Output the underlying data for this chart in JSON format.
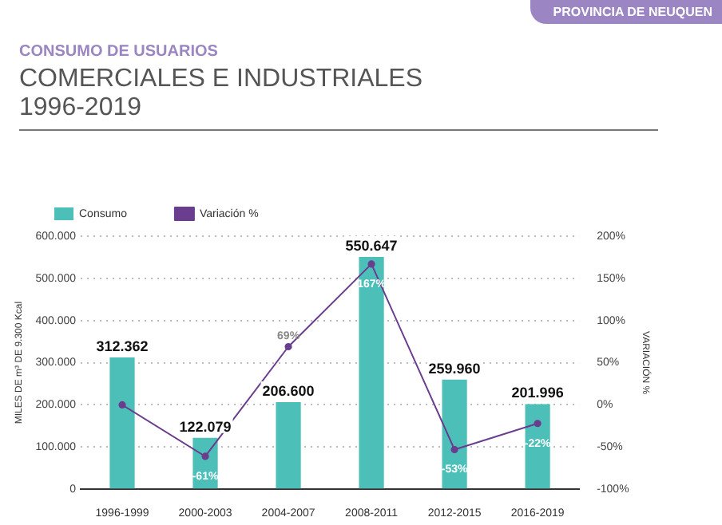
{
  "chart_data": {
    "type": "bar",
    "subtitle": "CONSUMO DE USUARIOS",
    "title": "COMERCIALES E INDUSTRIALES\n1996-2019",
    "annotations": [
      "PROVINCIA DE NEUQUEN"
    ],
    "categories": [
      "1996-1999",
      "2000-2003",
      "2004-2007",
      "2008-2011",
      "2012-2015",
      "2016-2019"
    ],
    "series": [
      {
        "name": "Consumo",
        "color": "#4bbfb8",
        "values": [
          312362,
          122079,
          206600,
          550647,
          259960,
          201996
        ],
        "value_labels": [
          "312.362",
          "122.079",
          "206.600",
          "550.647",
          "259.960",
          "201.996"
        ]
      },
      {
        "name": "Variación %",
        "type": "line",
        "axis": "y2",
        "color": "#6b3d8f",
        "values": [
          0,
          -61,
          69,
          167,
          -53,
          -22
        ],
        "value_labels": [
          null,
          "-61%",
          "69%",
          "167%",
          "-53%",
          "-22%"
        ]
      }
    ],
    "ylabel": "MILES DE m³ DE 9.300 Kcal",
    "y2label": "VARIACIÓN %",
    "ylim": [
      0,
      600000
    ],
    "yticks": [
      {
        "value": 0,
        "label": "0"
      },
      {
        "value": 100000,
        "label": "100.000"
      },
      {
        "value": 200000,
        "label": "200.000"
      },
      {
        "value": 300000,
        "label": "300.000"
      },
      {
        "value": 400000,
        "label": "400.000"
      },
      {
        "value": 500000,
        "label": "500.000"
      },
      {
        "value": 600000,
        "label": "600.000"
      }
    ],
    "y2lim": [
      -100,
      200
    ],
    "y2ticks": [
      {
        "value": -100,
        "label": "-100%"
      },
      {
        "value": -50,
        "label": "-50%"
      },
      {
        "value": 0,
        "label": "0%"
      },
      {
        "value": 50,
        "label": "50%"
      },
      {
        "value": 100,
        "label": "100%"
      },
      {
        "value": 150,
        "label": "150%"
      },
      {
        "value": 200,
        "label": "200%"
      }
    ],
    "grid": "y",
    "legend": "top left",
    "marker": "circle",
    "line_style": "solid"
  }
}
